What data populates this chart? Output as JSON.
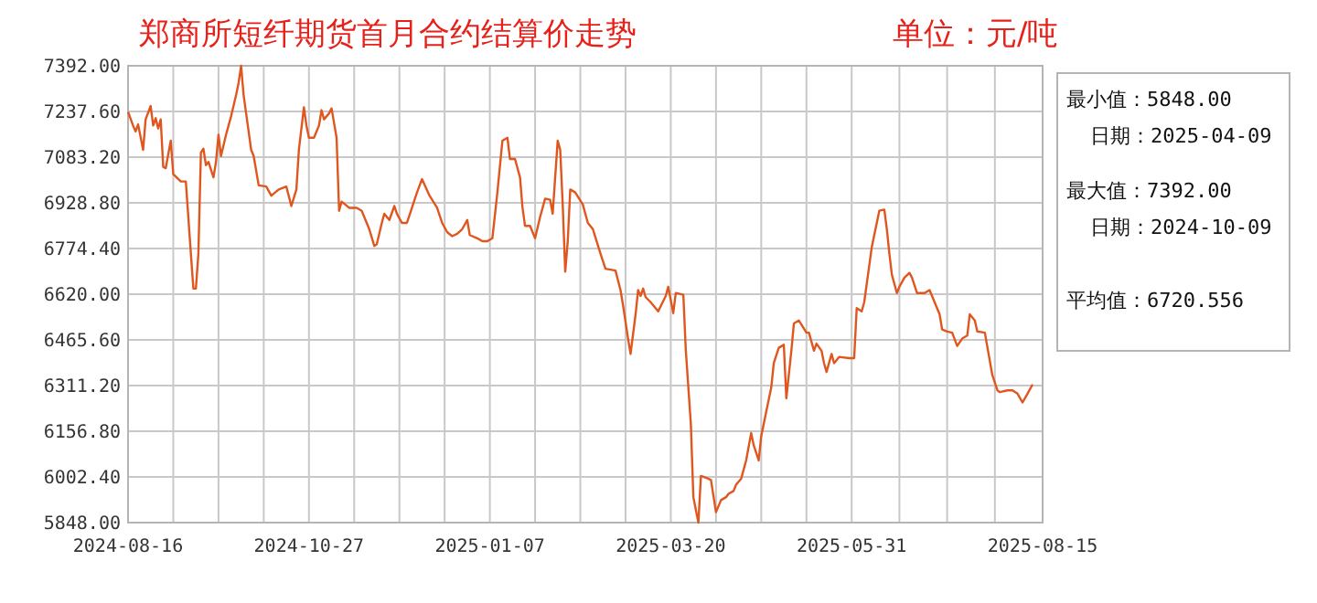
{
  "chart_data": {
    "type": "line",
    "title": "郑商所短纤期货首月合约结算价走势",
    "subtitle": "单位：元/吨",
    "annotations": [
      "最小值：5848.00",
      "日期：2025-04-09",
      "最大值：7392.00",
      "日期：2024-10-09",
      "平均值：6720.556"
    ],
    "xlim": [
      "2024-08-16",
      "2025-08-15"
    ],
    "xticks": [
      "2024-08-16",
      "2024-10-27",
      "2025-01-07",
      "2025-03-20",
      "2025-05-31",
      "2025-08-15"
    ],
    "ylim": [
      5848,
      7392
    ],
    "yticks": [
      {
        "value": 5848,
        "label": "5848.00"
      },
      {
        "value": 6002.4,
        "label": "6002.40"
      },
      {
        "value": 6156.8,
        "label": "6156.80"
      },
      {
        "value": 6311.2,
        "label": "6311.20"
      },
      {
        "value": 6465.6,
        "label": "6465.60"
      },
      {
        "value": 6620,
        "label": "6620.00"
      },
      {
        "value": 6774.4,
        "label": "6774.40"
      },
      {
        "value": 6928.8,
        "label": "6928.80"
      },
      {
        "value": 7083.2,
        "label": "7083.20"
      },
      {
        "value": 7237.6,
        "label": "7237.60"
      },
      {
        "value": 7392,
        "label": "7392.00"
      }
    ],
    "grid": true,
    "marker": "none",
    "line_style": "solid",
    "series": [
      {
        "color": "#e0561f",
        "x": [
          "2024-08-16",
          "2024-08-18",
          "2024-08-19",
          "2024-08-20",
          "2024-08-22",
          "2024-08-23",
          "2024-08-25",
          "2024-08-26",
          "2024-08-27",
          "2024-08-28",
          "2024-08-29",
          "2024-08-30",
          "2024-08-31",
          "2024-09-02",
          "2024-09-03",
          "2024-09-06",
          "2024-09-08",
          "2024-09-10",
          "2024-09-11",
          "2024-09-12",
          "2024-09-13",
          "2024-09-14",
          "2024-09-15",
          "2024-09-16",
          "2024-09-17",
          "2024-09-19",
          "2024-09-20",
          "2024-09-21",
          "2024-09-22",
          "2024-09-24",
          "2024-09-26",
          "2024-09-28",
          "2024-09-29",
          "2024-09-30",
          "2024-10-01",
          "2024-10-02",
          "2024-10-04",
          "2024-10-05",
          "2024-10-07",
          "2024-10-10",
          "2024-10-12",
          "2024-10-15",
          "2024-10-18",
          "2024-10-20",
          "2024-10-22",
          "2024-10-23",
          "2024-10-25",
          "2024-10-26",
          "2024-10-27",
          "2024-10-29",
          "2024-10-31",
          "2024-11-01",
          "2024-11-02",
          "2024-11-04",
          "2024-11-05",
          "2024-11-07",
          "2024-11-08",
          "2024-11-09",
          "2024-11-12",
          "2024-11-15",
          "2024-11-17",
          "2024-11-20",
          "2024-11-22",
          "2024-11-23",
          "2024-11-25",
          "2024-11-26",
          "2024-11-28",
          "2024-11-30",
          "2024-12-01",
          "2024-12-03",
          "2024-12-05",
          "2024-12-07",
          "2024-12-09",
          "2024-12-11",
          "2024-12-14",
          "2024-12-17",
          "2024-12-19",
          "2024-12-21",
          "2024-12-23",
          "2024-12-25",
          "2024-12-27",
          "2024-12-29",
          "2024-12-30",
          "2025-01-02",
          "2025-01-04",
          "2025-01-06",
          "2025-01-08",
          "2025-01-10",
          "2025-01-12",
          "2025-01-14",
          "2025-01-15",
          "2025-01-17",
          "2025-01-19",
          "2025-01-20",
          "2025-01-21",
          "2025-01-23",
          "2025-01-25",
          "2025-01-27",
          "2025-01-29",
          "2025-01-31",
          "2025-02-01",
          "2025-02-02",
          "2025-02-03",
          "2025-02-04",
          "2025-02-05",
          "2025-02-06",
          "2025-02-07",
          "2025-02-08",
          "2025-02-10",
          "2025-02-13",
          "2025-02-15",
          "2025-02-17",
          "2025-02-20",
          "2025-02-22",
          "2025-02-26",
          "2025-02-28",
          "2025-03-01",
          "2025-03-03",
          "2025-03-04",
          "2025-03-06",
          "2025-03-07",
          "2025-03-08",
          "2025-03-09",
          "2025-03-10",
          "2025-03-12",
          "2025-03-15",
          "2025-03-17",
          "2025-03-18",
          "2025-03-19",
          "2025-03-21",
          "2025-03-22",
          "2025-03-25",
          "2025-03-26",
          "2025-03-28",
          "2025-03-29",
          "2025-03-31",
          "2025-04-01",
          "2025-04-03",
          "2025-04-05",
          "2025-04-07",
          "2025-04-09",
          "2025-04-11",
          "2025-04-12",
          "2025-04-14",
          "2025-04-15",
          "2025-04-17",
          "2025-04-19",
          "2025-04-21",
          "2025-04-22",
          "2025-04-24",
          "2025-04-25",
          "2025-04-27",
          "2025-04-29",
          "2025-04-30",
          "2025-05-02",
          "2025-05-04",
          "2025-05-05",
          "2025-05-07",
          "2025-05-08",
          "2025-05-10",
          "2025-05-13",
          "2025-05-14",
          "2025-05-16",
          "2025-05-17",
          "2025-05-19",
          "2025-05-20",
          "2025-05-21",
          "2025-05-23",
          "2025-05-24",
          "2025-05-26",
          "2025-05-30",
          "2025-06-01",
          "2025-06-02",
          "2025-06-04",
          "2025-06-05",
          "2025-06-07",
          "2025-06-08",
          "2025-06-10",
          "2025-06-11",
          "2025-06-13",
          "2025-06-14",
          "2025-06-15",
          "2025-06-16",
          "2025-06-18",
          "2025-06-19",
          "2025-06-21",
          "2025-06-23",
          "2025-06-24",
          "2025-06-26",
          "2025-06-29",
          "2025-07-01",
          "2025-07-03",
          "2025-07-05",
          "2025-07-06",
          "2025-07-08",
          "2025-07-10",
          "2025-07-12",
          "2025-07-14",
          "2025-07-16",
          "2025-07-17",
          "2025-07-19",
          "2025-07-20",
          "2025-07-23",
          "2025-07-26",
          "2025-07-28",
          "2025-07-29",
          "2025-08-01",
          "2025-08-03",
          "2025-08-05",
          "2025-08-07",
          "2025-08-09",
          "2025-08-11"
        ],
        "values": [
          7236,
          7190,
          7170,
          7194,
          7108,
          7211,
          7256,
          7190,
          7215,
          7180,
          7211,
          7050,
          7046,
          7139,
          7026,
          7001,
          7001,
          6758,
          6639,
          6639,
          6758,
          7098,
          7112,
          7056,
          7067,
          7015,
          7067,
          7159,
          7087,
          7159,
          7221,
          7293,
          7334,
          7392,
          7293,
          7231,
          7108,
          7087,
          6988,
          6984,
          6953,
          6974,
          6984,
          6918,
          6974,
          7108,
          7252,
          7190,
          7149,
          7149,
          7190,
          7242,
          7211,
          7231,
          7248,
          7149,
          6902,
          6933,
          6912,
          6912,
          6902,
          6840,
          6783,
          6789,
          6861,
          6892,
          6871,
          6918,
          6892,
          6861,
          6861,
          6912,
          6964,
          7009,
          6953,
          6912,
          6861,
          6830,
          6816,
          6824,
          6840,
          6871,
          6820,
          6809,
          6799,
          6799,
          6809,
          6964,
          7139,
          7149,
          7077,
          7077,
          7015,
          6912,
          6851,
          6851,
          6809,
          6881,
          6943,
          6939,
          6892,
          7015,
          7139,
          7108,
          6923,
          6696,
          6799,
          6974,
          6964,
          6923,
          6861,
          6840,
          6758,
          6706,
          6700,
          6634,
          6583,
          6470,
          6418,
          6552,
          6634,
          6614,
          6639,
          6610,
          6593,
          6562,
          6597,
          6614,
          6645,
          6556,
          6624,
          6618,
          6429,
          6181,
          5934,
          5848,
          6006,
          6000,
          5992,
          5883,
          5924,
          5934,
          5945,
          5955,
          5976,
          5996,
          6058,
          6151,
          6110,
          6058,
          6140,
          6223,
          6305,
          6387,
          6439,
          6449,
          6268,
          6429,
          6521,
          6531,
          6490,
          6490,
          6429,
          6453,
          6429,
          6387,
          6357,
          6418,
          6387,
          6408,
          6404,
          6404,
          6573,
          6562,
          6593,
          6717,
          6779,
          6861,
          6902,
          6906,
          6840,
          6758,
          6686,
          6624,
          6645,
          6676,
          6692,
          6676,
          6624,
          6624,
          6634,
          6593,
          6552,
          6501,
          6494,
          6490,
          6445,
          6470,
          6480,
          6552,
          6531,
          6494,
          6490,
          6346,
          6295,
          6289,
          6295,
          6295,
          6284,
          6254,
          6284,
          6315
        ]
      }
    ]
  }
}
